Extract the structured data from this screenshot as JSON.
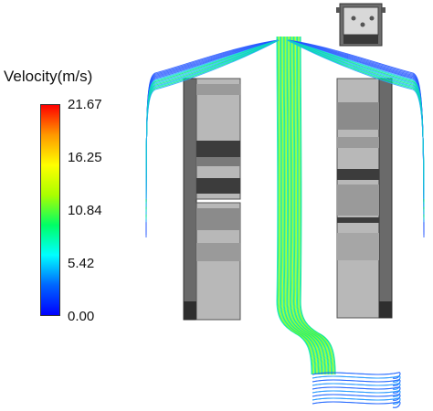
{
  "legend": {
    "title": "Velocity(m/s)",
    "ticks": [
      "21.67",
      "16.25",
      "10.84",
      "5.42",
      "0.00"
    ],
    "gradient": [
      "#ff0000",
      "#ff9900",
      "#ffff00",
      "#aaff00",
      "#00ff66",
      "#00ffff",
      "#0066ff",
      "#0000ff"
    ]
  },
  "colors": {
    "wall_dark": "#4a4a4a",
    "wall_mid": "#8a8a8a",
    "wall_light": "#bdbdbd",
    "streamline_low": "#2255ff",
    "streamline_mid": "#00e680",
    "streamline_high": "#aaff00"
  }
}
